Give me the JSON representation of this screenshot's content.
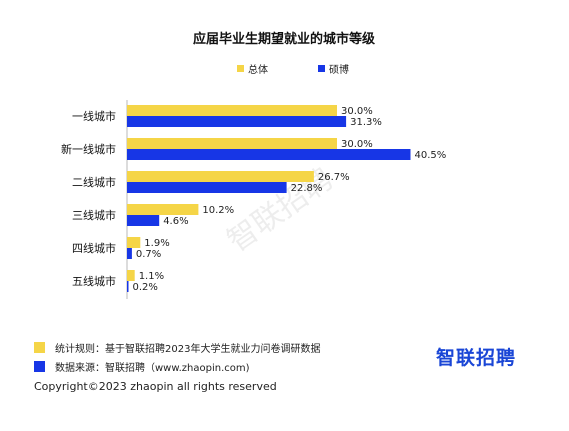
{
  "colors": {
    "overall": "#f5d547",
    "master_phd": "#1736e6",
    "logo": "#1a46d6",
    "logo_accent": "#f0c21a"
  },
  "chart_data": {
    "type": "bar",
    "orientation": "horizontal",
    "title": "应届毕业生期望就业的城市等级",
    "categories": [
      "一线城市",
      "新一线城市",
      "二线城市",
      "三线城市",
      "四线城市",
      "五线城市"
    ],
    "series": [
      {
        "name": "总体",
        "values": [
          30.0,
          30.0,
          26.7,
          10.2,
          1.9,
          1.1
        ],
        "labels": [
          "30.0%",
          "30.0%",
          "26.7%",
          "10.2%",
          "1.9%",
          "1.1%"
        ]
      },
      {
        "name": "硕博",
        "values": [
          31.3,
          40.5,
          22.8,
          4.6,
          0.7,
          0.2
        ],
        "labels": [
          "31.3%",
          "40.5%",
          "22.8%",
          "4.6%",
          "0.7%",
          "0.2%"
        ]
      }
    ],
    "legend_position": "top",
    "grid": false
  },
  "footer": {
    "rule_label": "统计规则：",
    "rule_text": "基于智联招聘2023年大学生就业力问卷调研数据",
    "source_label": "数据来源：",
    "source_text": "智联招聘（www.zhaopin.com)",
    "copyright": "Copyright©2023 zhaopin all rights reserved"
  },
  "logo": {
    "text": "智联招聘"
  },
  "watermark": "智联招聘"
}
